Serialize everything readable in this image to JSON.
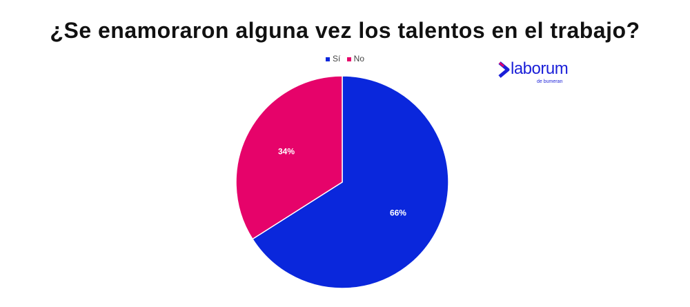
{
  "chart_data": {
    "type": "pie",
    "title": "¿Se enamoraron alguna vez los talentos en el trabajo?",
    "categories": [
      "Sí",
      "No"
    ],
    "values": [
      66,
      34
    ],
    "labels": [
      "66%",
      "34%"
    ],
    "colors": [
      "#0a27dc",
      "#e6036a"
    ],
    "legend_position": "top"
  },
  "logo": {
    "name": "laborum",
    "tagline": "de bumeran",
    "color": "#1a1fd8"
  }
}
